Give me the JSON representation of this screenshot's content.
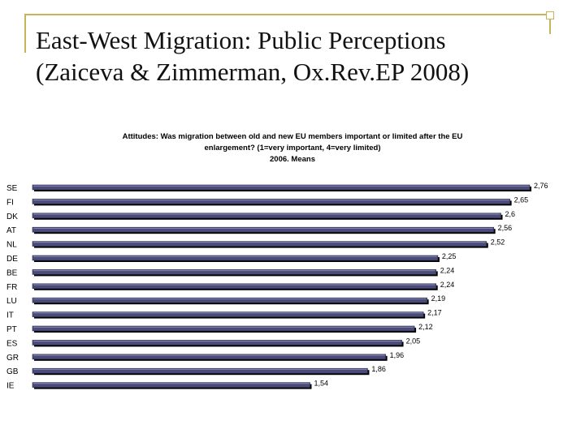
{
  "slide": {
    "title_line1": "East-West Migration: Public Perceptions",
    "title_line2": "(Zaiceva & Zimmerman, Ox.Rev.EP 2008)"
  },
  "chart_data": {
    "type": "bar",
    "orientation": "horizontal",
    "title_lines": [
      "Attitudes: Was migration between old and new EU members important or limited after the EU",
      "enlargement? (1=very important, 4=very limited)",
      "2006. Means"
    ],
    "categories": [
      "SE",
      "FI",
      "DK",
      "AT",
      "NL",
      "DE",
      "BE",
      "FR",
      "LU",
      "IT",
      "PT",
      "ES",
      "GR",
      "GB",
      "IE"
    ],
    "values": [
      2.76,
      2.65,
      2.6,
      2.56,
      2.52,
      2.25,
      2.24,
      2.24,
      2.19,
      2.17,
      2.12,
      2.05,
      1.96,
      1.86,
      1.54
    ],
    "value_labels": [
      "2,76",
      "2,65",
      "2,6",
      "2,56",
      "2,52",
      "2,25",
      "2,24",
      "2,24",
      "2,19",
      "2,17",
      "2,12",
      "2,05",
      "1,96",
      "1,86",
      "1,54"
    ],
    "xlim": [
      0,
      2.76
    ],
    "bar_color": "#4b4b7a",
    "shadow_color": "#000000"
  }
}
